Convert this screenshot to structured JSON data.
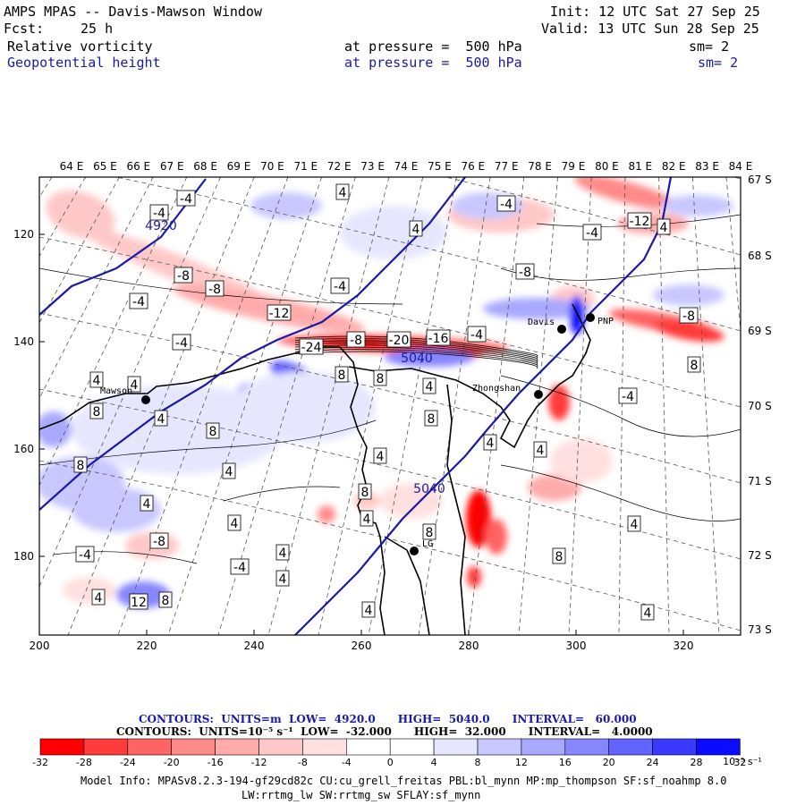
{
  "header": {
    "title": "AMPS MPAS -- Davis-Mawson Window",
    "fcst_label": "Fcst:",
    "fcst_value": "25 h",
    "init": "Init: 12 UTC Sat 27 Sep 25",
    "valid": "Valid: 13 UTC Sun 28 Sep 25",
    "field1": {
      "name": "Relative vorticity",
      "level": "at pressure =  500 hPa",
      "smooth": "sm= 2"
    },
    "field2": {
      "name": "Geopotential height",
      "level": "at pressure =  500 hPa",
      "smooth": "sm= 2"
    }
  },
  "map": {
    "lon_labels": [
      "64 E",
      "65 E",
      "66 E",
      "67 E",
      "68 E",
      "69 E",
      "70 E",
      "71 E",
      "72 E",
      "73 E",
      "74 E",
      "75 E",
      "76 E",
      "77 E",
      "78 E",
      "79 E",
      "80 E",
      "81 E",
      "82 E",
      "83 E",
      "84 E"
    ],
    "lat_labels": [
      "67 S",
      "68 S",
      "69 S",
      "70 S",
      "71 S",
      "72 S",
      "73 S"
    ],
    "x_ticks": [
      "200",
      "220",
      "240",
      "260",
      "280",
      "300",
      "320"
    ],
    "y_ticks": [
      "120",
      "140",
      "160",
      "180"
    ],
    "stations": [
      "Mawson",
      "Davis",
      "Zhongshan",
      "PNP",
      "LG"
    ],
    "height_labels": [
      "4920",
      "5040",
      "5040"
    ],
    "vort_labels": [
      "-4",
      "-4",
      "-8",
      "-8",
      "-12",
      "-4",
      "-4",
      "-24",
      "-8",
      "-20",
      "-16",
      "-4",
      "-12",
      "-8",
      "-4",
      "-8",
      "-4",
      "-4",
      "4",
      "4",
      "8",
      "4",
      "4",
      "8",
      "4",
      "8",
      "4",
      "8",
      "4",
      "8",
      "4",
      "8",
      "4",
      "8",
      "4",
      "4",
      "8",
      "4",
      "12",
      "8",
      "4",
      "4",
      "4",
      "-4",
      "4",
      "8",
      "4",
      "-8",
      "-4",
      "4",
      "4",
      "-4",
      "4",
      "8"
    ]
  },
  "colors": {
    "frame": "#000000",
    "height_contour": "#1a1aa6",
    "title_blue": "#1a1aa6",
    "reds": [
      "#ff0000",
      "#ff3b3b",
      "#ff6363",
      "#ff8a8a",
      "#ffabab",
      "#ffc8c8",
      "#ffe0e0"
    ],
    "blues": [
      "#e6e6ff",
      "#c8c8ff",
      "#a8a8ff",
      "#8686ff",
      "#6262ff",
      "#3a3aff",
      "#0b0bff"
    ]
  },
  "contour_info": {
    "line1": "CONTOURS:  UNITS=m  LOW=  4920.0      HIGH=  5040.0      INTERVAL=   60.000",
    "line2": "CONTOURS:  UNITS=10⁻⁵ s⁻¹  LOW=  -32.000      HIGH=  32.000      INTERVAL=   4.0000"
  },
  "colorbar": {
    "labels": [
      "-32",
      "-28",
      "-24",
      "-20",
      "-16",
      "-12",
      "-8",
      "-4",
      "0",
      "4",
      "8",
      "12",
      "16",
      "20",
      "24",
      "28",
      "32"
    ],
    "units": "10⁻⁵ s⁻¹"
  },
  "model_info": {
    "line1": "Model Info: MPASv8.2.3-194-gf29cd82c CU:cu_grell_freitas PBL:bl_mynn MP:mp_thompson SF:sf_noahmp 8.0",
    "line2": "LW:rrtmg_lw SW:rrtmg_sw SFLAY:sf_mynn"
  }
}
